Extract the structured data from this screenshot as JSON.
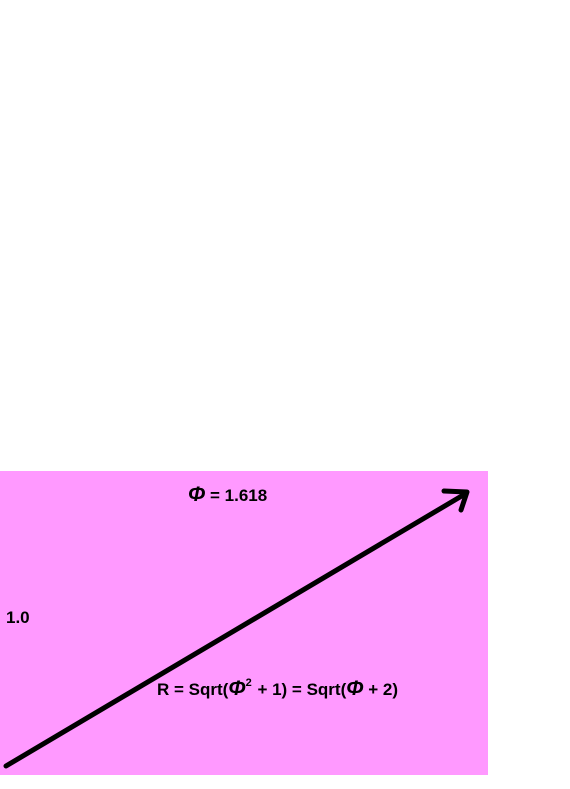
{
  "colors": {
    "rectangle_fill": "#ff99ff",
    "ink": "#000000",
    "background": "#ffffff"
  },
  "labels": {
    "phi_symbol": "Φ",
    "phi_value_text": " = 1.618",
    "height_label": "1.0",
    "radius_prefix": "R = Sqrt(",
    "radius_square": "2",
    "radius_mid": " + 1) = Sqrt(",
    "radius_suffix": " + 2)"
  },
  "icons": {
    "diagonal": "arrow-icon"
  }
}
